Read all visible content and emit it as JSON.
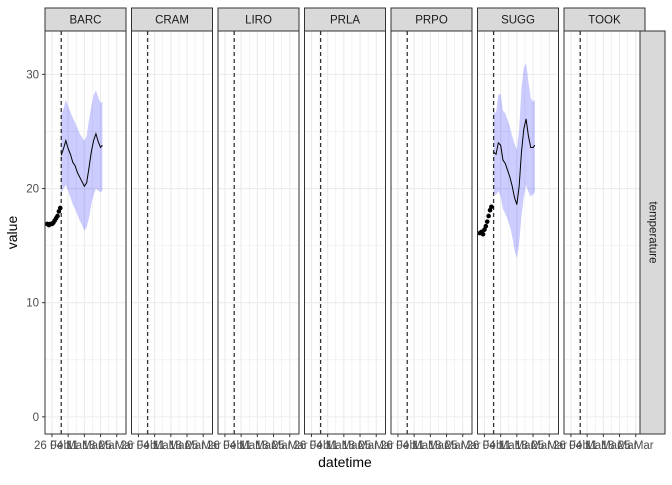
{
  "chart_data": {
    "type": "line",
    "xlabel": "datetime",
    "ylabel": "value",
    "row_strip": "temperature",
    "facets": [
      "BARC",
      "CRAM",
      "LIRO",
      "PRLA",
      "PRPO",
      "SUGG",
      "TOOK"
    ],
    "x_ticks": [
      "26 Feb",
      "04 Mar",
      "11 Mar",
      "18 Mar",
      "25 Mar"
    ],
    "x_tick_days": [
      0,
      7,
      14,
      21,
      28
    ],
    "xlim_days": [
      -3,
      32
    ],
    "forecast_start_day": 4,
    "y_ticks": [
      0,
      10,
      20,
      30
    ],
    "ylim": [
      -1.5,
      33.8
    ],
    "grid": true,
    "colors": {
      "ribbon": "#0000ff",
      "line": "#000000",
      "points": "#000000",
      "strip_fill": "#d9d9d9",
      "grid": "#ebebeb"
    },
    "series": [
      {
        "facet": "BARC",
        "observed": [
          [
            -2,
            16.9
          ],
          [
            -1.3,
            16.8
          ],
          [
            -0.6,
            16.9
          ],
          [
            0,
            16.9
          ],
          [
            0.6,
            17.0
          ],
          [
            1.2,
            17.2
          ],
          [
            1.8,
            17.4
          ],
          [
            2.4,
            17.6
          ],
          [
            3.0,
            18.0
          ],
          [
            3.6,
            18.3
          ]
        ],
        "forecast": [
          [
            4,
            22.9
          ],
          [
            5,
            23.5
          ],
          [
            6,
            24.2
          ],
          [
            7,
            23.5
          ],
          [
            8,
            23.0
          ],
          [
            9,
            22.3
          ],
          [
            10,
            22.0
          ],
          [
            11,
            21.4
          ],
          [
            12,
            21.0
          ],
          [
            13,
            20.6
          ],
          [
            14,
            20.2
          ],
          [
            15,
            20.5
          ],
          [
            16,
            21.8
          ],
          [
            17,
            23.2
          ],
          [
            18,
            24.2
          ],
          [
            19,
            24.8
          ],
          [
            20,
            24.1
          ],
          [
            21,
            23.6
          ],
          [
            21.8,
            23.8
          ]
        ],
        "lower": [
          [
            4,
            19.5
          ],
          [
            5,
            20.0
          ],
          [
            6,
            20.3
          ],
          [
            7,
            19.8
          ],
          [
            8,
            19.2
          ],
          [
            9,
            18.6
          ],
          [
            10,
            18.2
          ],
          [
            11,
            17.7
          ],
          [
            12,
            17.2
          ],
          [
            13,
            16.8
          ],
          [
            14,
            16.3
          ],
          [
            15,
            16.6
          ],
          [
            16,
            17.4
          ],
          [
            17,
            18.6
          ],
          [
            18,
            19.4
          ],
          [
            19,
            20.0
          ],
          [
            20,
            19.8
          ],
          [
            21,
            19.7
          ],
          [
            21.8,
            19.8
          ]
        ],
        "upper": [
          [
            4,
            26.5
          ],
          [
            5,
            27.0
          ],
          [
            6,
            27.8
          ],
          [
            7,
            27.2
          ],
          [
            8,
            26.7
          ],
          [
            9,
            26.2
          ],
          [
            10,
            25.8
          ],
          [
            11,
            25.3
          ],
          [
            12,
            24.8
          ],
          [
            13,
            24.5
          ],
          [
            14,
            24.2
          ],
          [
            15,
            24.6
          ],
          [
            16,
            26.0
          ],
          [
            17,
            27.2
          ],
          [
            18,
            28.2
          ],
          [
            19,
            28.6
          ],
          [
            20,
            28.0
          ],
          [
            21,
            27.5
          ],
          [
            21.8,
            27.6
          ]
        ]
      },
      {
        "facet": "SUGG",
        "observed": [
          [
            -2,
            16.1
          ],
          [
            -1.3,
            16.2
          ],
          [
            -0.6,
            16.0
          ],
          [
            0,
            16.4
          ],
          [
            0.6,
            16.7
          ],
          [
            1.2,
            17.1
          ],
          [
            1.8,
            17.6
          ],
          [
            2.4,
            18.1
          ],
          [
            3.0,
            18.4
          ]
        ],
        "forecast": [
          [
            4,
            23.2
          ],
          [
            5,
            23.0
          ],
          [
            6,
            24.0
          ],
          [
            7,
            23.8
          ],
          [
            8,
            22.5
          ],
          [
            9,
            22.2
          ],
          [
            10,
            21.6
          ],
          [
            11,
            21.0
          ],
          [
            12,
            20.2
          ],
          [
            13,
            19.2
          ],
          [
            14,
            18.6
          ],
          [
            15,
            20.2
          ],
          [
            16,
            23.2
          ],
          [
            17,
            25.2
          ],
          [
            18,
            26.1
          ],
          [
            19,
            24.6
          ],
          [
            20,
            23.6
          ],
          [
            21,
            23.6
          ],
          [
            21.8,
            23.8
          ]
        ],
        "lower": [
          [
            4,
            19.6
          ],
          [
            5,
            19.4
          ],
          [
            6,
            19.8
          ],
          [
            7,
            19.3
          ],
          [
            8,
            18.2
          ],
          [
            9,
            17.8
          ],
          [
            10,
            17.3
          ],
          [
            11,
            16.7
          ],
          [
            12,
            15.8
          ],
          [
            13,
            14.6
          ],
          [
            14,
            13.9
          ],
          [
            15,
            15.2
          ],
          [
            16,
            17.6
          ],
          [
            17,
            19.2
          ],
          [
            18,
            20.3
          ],
          [
            19,
            19.7
          ],
          [
            20,
            19.3
          ],
          [
            21,
            19.5
          ],
          [
            21.8,
            19.7
          ]
        ],
        "upper": [
          [
            4,
            26.8
          ],
          [
            5,
            26.6
          ],
          [
            6,
            28.2
          ],
          [
            7,
            28.3
          ],
          [
            8,
            26.8
          ],
          [
            9,
            26.6
          ],
          [
            10,
            26.0
          ],
          [
            11,
            25.4
          ],
          [
            12,
            24.6
          ],
          [
            13,
            23.9
          ],
          [
            14,
            23.4
          ],
          [
            15,
            25.2
          ],
          [
            16,
            28.8
          ],
          [
            17,
            30.6
          ],
          [
            18,
            31.0
          ],
          [
            19,
            29.4
          ],
          [
            20,
            27.9
          ],
          [
            21,
            27.6
          ],
          [
            21.8,
            27.8
          ]
        ]
      }
    ]
  }
}
